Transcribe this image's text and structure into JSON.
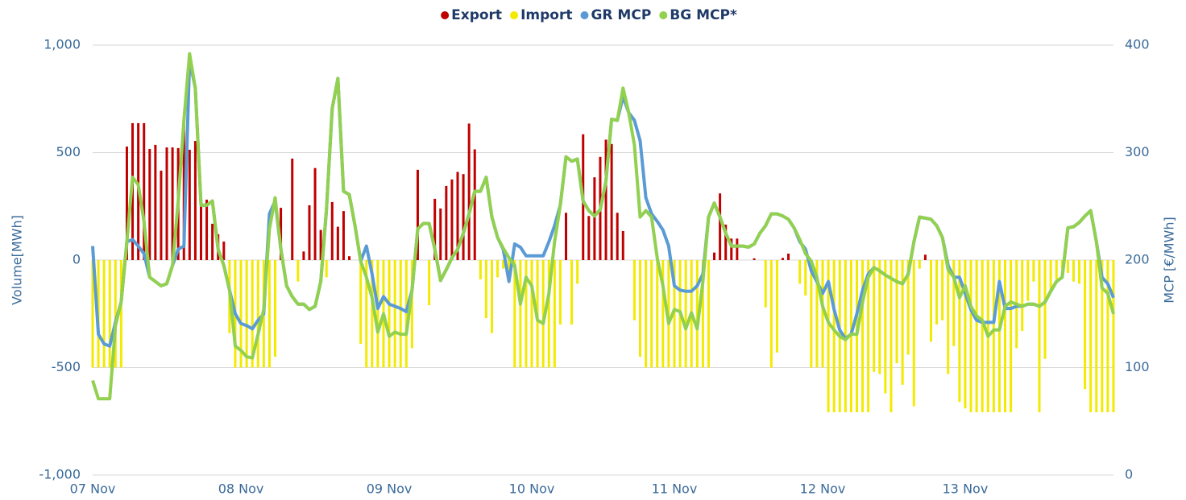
{
  "chart_data": {
    "type": "bar",
    "categories": [
      "07 Nov",
      null,
      null,
      null,
      null,
      null,
      null,
      null,
      null,
      null,
      null,
      null,
      null,
      null,
      null,
      null,
      null,
      null,
      null,
      null,
      null,
      null,
      null,
      null,
      null,
      null,
      "08 Nov",
      null,
      null,
      null,
      null,
      null,
      null,
      null,
      null,
      null,
      null,
      null,
      null,
      null,
      null,
      null,
      null,
      null,
      null,
      null,
      null,
      null,
      null,
      null,
      null,
      null,
      "09 Nov",
      null,
      null,
      null,
      null,
      null,
      null,
      null,
      null,
      null,
      null,
      null,
      null,
      null,
      null,
      null,
      null,
      null,
      null,
      null,
      null,
      null,
      null,
      null,
      null,
      "10 Nov",
      null,
      null,
      null,
      null,
      null,
      null,
      null,
      null,
      null,
      null,
      null,
      null,
      null,
      null,
      null,
      null,
      null,
      null,
      null,
      null,
      null,
      null,
      null,
      null,
      "11 Nov",
      null,
      null,
      null,
      null,
      null,
      null,
      null,
      null,
      null,
      null,
      null,
      null,
      null,
      null,
      null,
      null,
      null,
      null,
      null,
      null,
      null,
      null,
      null,
      null,
      null,
      "12 Nov",
      null,
      null,
      null,
      null,
      null,
      null,
      null,
      null,
      null,
      null,
      null,
      null,
      null,
      null,
      null,
      null,
      null,
      null,
      null,
      null,
      null,
      null,
      null,
      null,
      "13 Nov",
      null,
      null,
      null,
      null,
      null,
      null,
      null,
      null,
      null,
      null,
      null,
      null,
      null,
      null,
      null,
      null,
      null,
      null,
      null,
      null,
      null,
      null,
      null,
      null,
      null,
      null
    ],
    "series": [
      {
        "name": "Export",
        "type": "bar",
        "color": "#c00000",
        "values": [
          null,
          null,
          null,
          null,
          null,
          null,
          528,
          637,
          637,
          637,
          517,
          536,
          416,
          524,
          524,
          521,
          637,
          513,
          554,
          281,
          281,
          169,
          120,
          86,
          null,
          null,
          null,
          null,
          null,
          null,
          null,
          null,
          null,
          243,
          null,
          472,
          null,
          40,
          255,
          428,
          140,
          null,
          270,
          155,
          228,
          18,
          null,
          null,
          null,
          null,
          null,
          null,
          null,
          null,
          null,
          null,
          null,
          420,
          null,
          null,
          285,
          240,
          345,
          375,
          410,
          400,
          635,
          515,
          null,
          null,
          null,
          null,
          null,
          null,
          null,
          null,
          null,
          null,
          null,
          null,
          null,
          null,
          null,
          220,
          null,
          null,
          585,
          205,
          385,
          480,
          560,
          540,
          220,
          135,
          null,
          null,
          null,
          null,
          null,
          null,
          null,
          null,
          null,
          null,
          null,
          null,
          null,
          null,
          null,
          35,
          310,
          165,
          100,
          100,
          null,
          null,
          8,
          null,
          null,
          null,
          null,
          10,
          30,
          null,
          null,
          null,
          null,
          null,
          null,
          null,
          null,
          null,
          null,
          null,
          null,
          null,
          null,
          null,
          null,
          null,
          null,
          null,
          null,
          null,
          null,
          null,
          25,
          null,
          null,
          null,
          null,
          null,
          null,
          null,
          null,
          null,
          null,
          null,
          null,
          null,
          null,
          null,
          null,
          null,
          null,
          null,
          null,
          null,
          null,
          null,
          null,
          null,
          null,
          null,
          null,
          null,
          null,
          null,
          null,
          null
        ]
      },
      {
        "name": "Import",
        "type": "bar",
        "color": "#f2ea00",
        "values": [
          -500,
          -500,
          -500,
          -500,
          -500,
          -500,
          null,
          null,
          null,
          null,
          null,
          null,
          null,
          null,
          null,
          null,
          null,
          null,
          null,
          null,
          null,
          null,
          null,
          null,
          -340,
          -500,
          -500,
          -500,
          -500,
          -500,
          -500,
          -500,
          -450,
          null,
          null,
          null,
          -100,
          null,
          null,
          null,
          null,
          -80,
          null,
          null,
          null,
          null,
          null,
          -390,
          -500,
          -500,
          -500,
          -500,
          -500,
          -500,
          -500,
          -500,
          -410,
          null,
          null,
          -210,
          null,
          null,
          null,
          null,
          null,
          null,
          null,
          null,
          -90,
          -270,
          -340,
          -80,
          -40,
          -90,
          -500,
          -500,
          -500,
          -500,
          -500,
          -500,
          -500,
          -500,
          -300,
          null,
          -300,
          -110,
          null,
          null,
          null,
          null,
          null,
          null,
          null,
          null,
          null,
          -280,
          -450,
          -500,
          -500,
          -500,
          -500,
          -500,
          -500,
          -500,
          -500,
          -500,
          -500,
          -500,
          -500,
          null,
          null,
          null,
          null,
          null,
          null,
          null,
          null,
          null,
          -220,
          -500,
          -430,
          null,
          null,
          null,
          -110,
          -165,
          -500,
          -500,
          -500,
          -708,
          -708,
          -708,
          -708,
          -708,
          -708,
          -708,
          -708,
          -520,
          -530,
          -620,
          -708,
          -480,
          -580,
          -440,
          -680,
          -40,
          null,
          -380,
          -300,
          -280,
          -530,
          -400,
          -660,
          -690,
          -708,
          -708,
          -708,
          -708,
          -708,
          -708,
          -708,
          -708,
          -410,
          -330,
          -190,
          -100,
          -708,
          -460,
          -150,
          -90,
          -40,
          -60,
          -100,
          -110,
          -600,
          -708,
          -708,
          -708,
          -708,
          -708
        ]
      },
      {
        "name": "GR MCP",
        "type": "line",
        "axis": "y2",
        "color": "#5b9bd5",
        "values": [
          213,
          131,
          122,
          120,
          142,
          161,
          217,
          219,
          213,
          206,
          184,
          180,
          176,
          178,
          195,
          210,
          213,
          386,
          360,
          251,
          251,
          255,
          210,
          195,
          172,
          150,
          141,
          139,
          136,
          144,
          150,
          243,
          255,
          210,
          176,
          166,
          159,
          159,
          154,
          157,
          180,
          247,
          341,
          369,
          264,
          261,
          232,
          199,
          213,
          187,
          155,
          166,
          159,
          157,
          155,
          152,
          172,
          229,
          234,
          234,
          210,
          181,
          191,
          202,
          210,
          225,
          243,
          264,
          264,
          277,
          240,
          221,
          210,
          180,
          215,
          212,
          204,
          204,
          204,
          204,
          217,
          232,
          251,
          296,
          292,
          294,
          255,
          246,
          241,
          247,
          273,
          331,
          330,
          352,
          337,
          330,
          311,
          258,
          243,
          236,
          228,
          213,
          176,
          172,
          171,
          171,
          176,
          187,
          240,
          253,
          240,
          225,
          213,
          213,
          213,
          212,
          215,
          225,
          232,
          243,
          243,
          241,
          238,
          230,
          217,
          210,
          190,
          180,
          169,
          180,
          154,
          135,
          127,
          131,
          150,
          172,
          187,
          193,
          190,
          186,
          183,
          180,
          178,
          187,
          217,
          240,
          239,
          238,
          232,
          221,
          195,
          184,
          184,
          169,
          154,
          144,
          142,
          142,
          142,
          180,
          155,
          155,
          157,
          157,
          159,
          159,
          157,
          161,
          171,
          180,
          184,
          230,
          231,
          235,
          241,
          246,
          217,
          184,
          178,
          165
        ]
      },
      {
        "name": "BG MCP*",
        "type": "line",
        "axis": "y2",
        "color": "#92d050",
        "values": [
          88,
          71,
          71,
          71,
          139,
          161,
          217,
          277,
          270,
          236,
          184,
          180,
          176,
          178,
          195,
          255,
          330,
          392,
          360,
          251,
          251,
          255,
          210,
          195,
          172,
          120,
          116,
          110,
          109,
          131,
          154,
          229,
          258,
          210,
          176,
          166,
          159,
          159,
          154,
          157,
          180,
          247,
          341,
          369,
          264,
          261,
          232,
          199,
          184,
          165,
          133,
          150,
          129,
          133,
          131,
          131,
          172,
          229,
          234,
          234,
          210,
          181,
          191,
          202,
          210,
          225,
          243,
          264,
          264,
          277,
          240,
          221,
          211,
          202,
          195,
          159,
          184,
          176,
          144,
          141,
          169,
          217,
          251,
          296,
          292,
          294,
          255,
          246,
          241,
          247,
          273,
          331,
          330,
          360,
          337,
          307,
          240,
          246,
          240,
          202,
          176,
          141,
          154,
          152,
          136,
          151,
          136,
          180,
          240,
          253,
          240,
          225,
          213,
          213,
          213,
          212,
          215,
          225,
          232,
          243,
          243,
          241,
          238,
          230,
          219,
          206,
          199,
          184,
          157,
          142,
          135,
          129,
          126,
          131,
          131,
          161,
          184,
          193,
          190,
          186,
          183,
          180,
          178,
          187,
          217,
          240,
          239,
          238,
          232,
          221,
          191,
          184,
          165,
          176,
          157,
          148,
          144,
          129,
          135,
          135,
          157,
          161,
          159,
          157,
          159,
          159,
          157,
          161,
          171,
          180,
          184,
          230,
          231,
          235,
          241,
          246,
          217,
          174,
          169,
          150
        ]
      }
    ],
    "ylabel": "Volume[MWh]",
    "y2label": "MCP [€/MWh]",
    "ylim": [
      -1000,
      1000
    ],
    "yticks": [
      {
        "value": -1000,
        "label": "-1,000"
      },
      -500,
      0,
      500,
      {
        "value": 1000,
        "label": "1,000"
      }
    ],
    "y2lim": [
      0,
      400
    ],
    "y2ticks": [
      0,
      100,
      200,
      300,
      400
    ],
    "grid": true,
    "legend": "top"
  }
}
